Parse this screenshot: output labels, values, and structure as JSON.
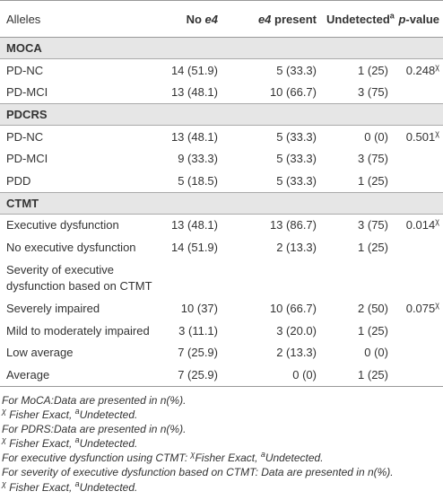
{
  "header": [
    [
      {
        "text": "Alleles"
      }
    ],
    [
      {
        "text": "No "
      },
      {
        "text": "e4",
        "italic": true
      }
    ],
    [
      {
        "text": "e4",
        "italic": true
      },
      {
        "text": " present"
      }
    ],
    [
      {
        "text": "Undetected"
      },
      {
        "text": "a",
        "sup": true
      }
    ],
    [
      {
        "text": "p",
        "italic": true
      },
      {
        "text": "-value"
      }
    ]
  ],
  "sections": [
    {
      "title": "MOCA",
      "rows": [
        [
          "PD-NC",
          "14 (51.9)",
          "5 (33.3)",
          "1 (25)",
          [
            {
              "text": "0.248"
            },
            {
              "text": "χ",
              "sup": true
            }
          ]
        ],
        [
          "PD-MCI",
          "13 (48.1)",
          "10 (66.7)",
          "3 (75)"
        ]
      ]
    },
    {
      "title": "PDCRS",
      "rows": [
        [
          "PD-NC",
          "13 (48.1)",
          "5 (33.3)",
          "0 (0)",
          [
            {
              "text": "0.501"
            },
            {
              "text": "χ",
              "sup": true
            }
          ]
        ],
        [
          "PD-MCI",
          "9 (33.3)",
          "5 (33.3)",
          "3 (75)"
        ],
        [
          "PDD",
          "5 (18.5)",
          "5 (33.3)",
          "1 (25)"
        ]
      ]
    },
    {
      "title": "CTMT",
      "rows": [
        [
          "Executive dysfunction",
          "13 (48.1)",
          "13 (86.7)",
          "3 (75)",
          [
            {
              "text": "0.014"
            },
            {
              "text": "χ",
              "sup": true
            }
          ]
        ],
        [
          "No executive dysfunction",
          "14 (51.9)",
          "2 (13.3)",
          "1 (25)"
        ],
        [
          "Severity of executive dysfunction based on CTMT"
        ],
        [
          "Severely impaired",
          "10 (37)",
          "10 (66.7)",
          "2 (50)",
          [
            {
              "text": "0.075"
            },
            {
              "text": "χ",
              "sup": true
            }
          ]
        ],
        [
          "Mild to moderately impaired",
          "3 (11.1)",
          "3 (20.0)",
          "1 (25)"
        ],
        [
          "Low average",
          "7 (25.9)",
          "2 (13.3)",
          "0 (0)"
        ],
        [
          "Average",
          "7 (25.9)",
          "0 (0)",
          "1 (25)"
        ]
      ]
    }
  ],
  "footnotes": [
    [
      {
        "text": "For MoCA:Data are presented in n(%)."
      }
    ],
    [
      {
        "text": "χ",
        "sup": true
      },
      {
        "text": " Fisher Exact, "
      },
      {
        "text": "a",
        "sup": true
      },
      {
        "text": "Undetected."
      }
    ],
    [
      {
        "text": "For PDRS:Data are presented in n(%)."
      }
    ],
    [
      {
        "text": "χ",
        "sup": true
      },
      {
        "text": " Fisher Exact, "
      },
      {
        "text": "a",
        "sup": true
      },
      {
        "text": "Undetected."
      }
    ],
    [
      {
        "text": "For executive dysfunction using CTMT: "
      },
      {
        "text": "χ",
        "sup": true
      },
      {
        "text": "Fisher Exact, "
      },
      {
        "text": "a",
        "sup": true
      },
      {
        "text": "Undetected."
      }
    ],
    [
      {
        "text": "For severity of executive dysfunction based on CTMT: Data are presented in n(%)."
      }
    ],
    [
      {
        "text": "χ",
        "sup": true
      },
      {
        "text": " Fisher Exact, "
      },
      {
        "text": "a",
        "sup": true
      },
      {
        "text": "Undetected."
      }
    ]
  ]
}
